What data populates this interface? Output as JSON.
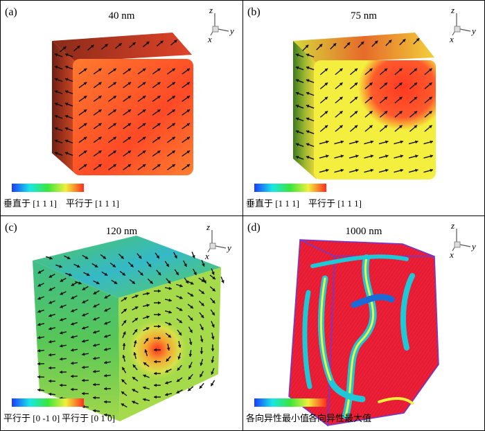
{
  "panels": [
    {
      "label": "(a)",
      "title": "40 nm",
      "colorbar": {
        "min_label": "垂直于 [1 1 1]",
        "max_label": "平行于 [1 1 1]",
        "colors": [
          "#1a3cff",
          "#19e6e6",
          "#3ce63c",
          "#f0f03c",
          "#ff2d1e"
        ]
      },
      "face_colors": {
        "front": "#ff6a2a",
        "left": "#b4331f",
        "top": "#e24b2a"
      }
    },
    {
      "label": "(b)",
      "title": "75 nm",
      "colorbar": {
        "min_label": "垂直于 [1 1 1]",
        "max_label": "平行于 [1 1 1]",
        "colors": [
          "#1a3cff",
          "#19e6e6",
          "#3ce63c",
          "#f0f03c",
          "#ff2d1e"
        ]
      },
      "face_colors": {
        "front": "#f5ef3c",
        "left": "#c9b23a",
        "top": "#e88a2a"
      }
    },
    {
      "label": "(c)",
      "title": "120 nm",
      "colorbar": {
        "min_label": "平行于 [0 -1 0]",
        "max_label": "平行于 [0 1 0]",
        "colors": [
          "#1a3cff",
          "#19e6e6",
          "#3ce63c",
          "#f0f03c",
          "#ff2d1e"
        ]
      },
      "face_colors": {
        "front": "#9edb4a",
        "left": "#62c956",
        "top": "#6fcf55"
      }
    },
    {
      "label": "(d)",
      "title": "1000 nm",
      "colorbar": {
        "min_label": "各向异性最小值",
        "max_label": "各向异性最大值",
        "colors": [
          "#1a3cff",
          "#19e6e6",
          "#3ce63c",
          "#f0f03c",
          "#ff2d1e"
        ]
      },
      "face_colors": {
        "front": "#f0243a",
        "left": "#e42a3c",
        "top": "#e8283c"
      }
    }
  ],
  "axes": {
    "x": "x",
    "y": "y",
    "z": "z"
  }
}
